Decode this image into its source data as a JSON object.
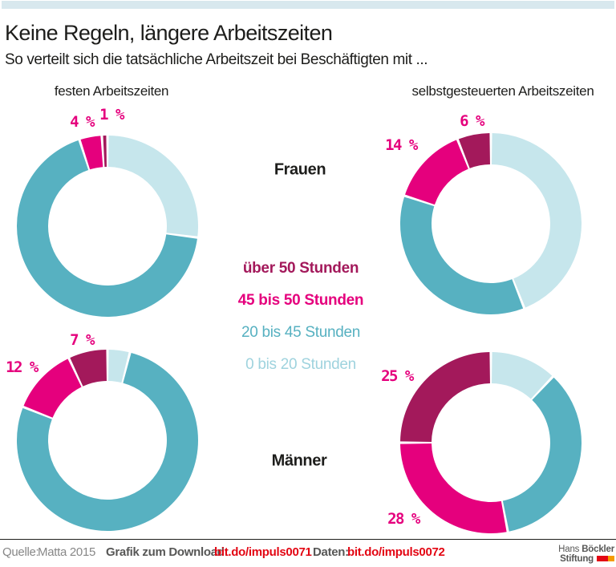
{
  "title": "Keine Regeln, längere Arbeitszeiten",
  "subtitle": "So verteilt sich die tatsächliche Arbeitszeit bei Beschäftigten mit ...",
  "columns": {
    "left": "festen Arbeitszeiten",
    "right": "selbstgesteuerten Arbeitszeiten"
  },
  "rows": {
    "top": "Frauen",
    "bottom": "Männer"
  },
  "palette": {
    "topbar_blue": "#d8e8ee",
    "berry_dark": "#a3195b",
    "pink": "#e5007d",
    "teal": "#57b1c1",
    "light_teal": "#c6e6ec",
    "legend_light_teal": "#9fd3de",
    "label_pink": "#e5007d",
    "footer_gray": "#878787",
    "footer_dark_gray": "#575756",
    "link_red": "#e30613"
  },
  "legend": [
    {
      "label": "über 50 Stunden",
      "color": "#a3195b",
      "bold": true
    },
    {
      "label": "45 bis 50 Stunden",
      "color": "#e5007d",
      "bold": true
    },
    {
      "label": "20 bis 45 Stunden",
      "color": "#57b1c1",
      "bold": false
    },
    {
      "label": "0 bis 20 Stunden",
      "color": "#9fd3de",
      "bold": false
    }
  ],
  "chart_data": [
    {
      "type": "pie",
      "donut": true,
      "row": "Frauen",
      "column": "festen Arbeitszeiten",
      "start_angle_deg": 0,
      "direction": "clockwise",
      "segments": [
        {
          "category": "0 bis 20 Stunden",
          "value": 27,
          "color": "#c6e6ec",
          "estimated": true
        },
        {
          "category": "20 bis 45 Stunden",
          "value": 68,
          "color": "#57b1c1",
          "estimated": true
        },
        {
          "category": "45 bis 50 Stunden",
          "value": 4,
          "color": "#e5007d"
        },
        {
          "category": "über 50 Stunden",
          "value": 1,
          "color": "#a3195b"
        }
      ],
      "labels": [
        {
          "text": "4 %",
          "segment": "45 bis 50 Stunden"
        },
        {
          "text": "1 %",
          "segment": "über 50 Stunden"
        }
      ]
    },
    {
      "type": "pie",
      "donut": true,
      "row": "Frauen",
      "column": "selbstgesteuerten Arbeitszeiten",
      "start_angle_deg": 0,
      "direction": "clockwise",
      "segments": [
        {
          "category": "0 bis 20 Stunden",
          "value": 44,
          "color": "#c6e6ec",
          "estimated": true
        },
        {
          "category": "20 bis 45 Stunden",
          "value": 36,
          "color": "#57b1c1",
          "estimated": true
        },
        {
          "category": "45 bis 50 Stunden",
          "value": 14,
          "color": "#e5007d"
        },
        {
          "category": "über 50 Stunden",
          "value": 6,
          "color": "#a3195b"
        }
      ],
      "labels": [
        {
          "text": "14 %",
          "segment": "45 bis 50 Stunden"
        },
        {
          "text": "6 %",
          "segment": "über 50 Stunden"
        }
      ]
    },
    {
      "type": "pie",
      "donut": true,
      "row": "Männer",
      "column": "festen Arbeitszeiten",
      "start_angle_deg": 0,
      "direction": "clockwise",
      "segments": [
        {
          "category": "0 bis 20 Stunden",
          "value": 4,
          "color": "#c6e6ec",
          "estimated": true
        },
        {
          "category": "20 bis 45 Stunden",
          "value": 77,
          "color": "#57b1c1",
          "estimated": true
        },
        {
          "category": "45 bis 50 Stunden",
          "value": 12,
          "color": "#e5007d"
        },
        {
          "category": "über 50 Stunden",
          "value": 7,
          "color": "#a3195b"
        }
      ],
      "labels": [
        {
          "text": "12 %",
          "segment": "45 bis 50 Stunden"
        },
        {
          "text": "7 %",
          "segment": "über 50 Stunden"
        }
      ]
    },
    {
      "type": "pie",
      "donut": true,
      "row": "Männer",
      "column": "selbstgesteuerten Arbeitszeiten",
      "start_angle_deg": 0,
      "direction": "clockwise",
      "segments": [
        {
          "category": "0 bis 20 Stunden",
          "value": 12,
          "color": "#c6e6ec",
          "estimated": true
        },
        {
          "category": "20 bis 45 Stunden",
          "value": 35,
          "color": "#57b1c1",
          "estimated": true
        },
        {
          "category": "45 bis 50 Stunden",
          "value": 28,
          "color": "#e5007d"
        },
        {
          "category": "über 50 Stunden",
          "value": 25,
          "color": "#a3195b"
        }
      ],
      "labels": [
        {
          "text": "28 %",
          "segment": "45 bis 50 Stunden"
        },
        {
          "text": "25 %",
          "segment": "über 50 Stunden"
        }
      ]
    }
  ],
  "footer": {
    "source_label": "Quelle:",
    "source": "Matta 2015",
    "download_label": "Grafik zum Download:",
    "download_url": "bit.do/impuls0071",
    "data_label": "Daten:",
    "data_url": "bit.do/impuls0072"
  },
  "logo": {
    "line1_regular": "Hans ",
    "line1_bold": "Böckler",
    "line2_bold": "Stiftung"
  }
}
